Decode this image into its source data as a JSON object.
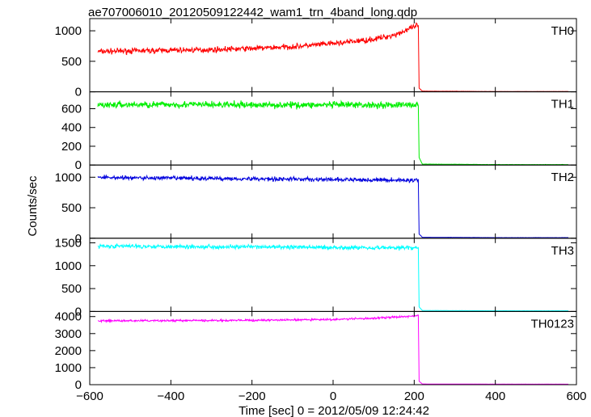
{
  "chart_data": {
    "type": "line",
    "title": "ae707006010_20120509122442_wam1_trn_4band_long.qdp",
    "xlabel": "Time [sec] 0 = 2012/05/09 12:24:42",
    "ylabel": "Counts/sec",
    "xlim": [
      -600,
      600
    ],
    "x_ticks": [
      -600,
      -400,
      -200,
      0,
      200,
      400,
      600
    ],
    "x_tick_labels": [
      "−600",
      "−400",
      "−200",
      "0",
      "200",
      "400",
      "600"
    ],
    "grid": false,
    "panels": [
      {
        "name": "TH0",
        "color": "#ff0000",
        "ylim": [
          0,
          1200
        ],
        "y_ticks": [
          0,
          500,
          1000
        ],
        "x": [
          -580,
          -500,
          -400,
          -300,
          -200,
          -100,
          0,
          100,
          150,
          200,
          210,
          212,
          220,
          300,
          400,
          500,
          580
        ],
        "y": [
          660,
          670,
          680,
          690,
          710,
          740,
          790,
          860,
          930,
          1060,
          1100,
          60,
          10,
          8,
          5,
          5,
          5
        ],
        "noise": 45
      },
      {
        "name": "TH1",
        "color": "#00ee00",
        "ylim": [
          0,
          780
        ],
        "y_ticks": [
          0,
          200,
          400,
          600
        ],
        "x": [
          -580,
          -400,
          -200,
          0,
          200,
          210,
          212,
          220,
          400,
          580
        ],
        "y": [
          640,
          645,
          640,
          640,
          640,
          640,
          80,
          10,
          5,
          5
        ],
        "noise": 35
      },
      {
        "name": "TH2",
        "color": "#0000dd",
        "ylim": [
          0,
          1200
        ],
        "y_ticks": [
          0,
          500,
          1000
        ],
        "x": [
          -580,
          -500,
          -400,
          -300,
          -200,
          -100,
          0,
          100,
          200,
          210,
          212,
          220,
          400,
          580
        ],
        "y": [
          1000,
          990,
          985,
          980,
          975,
          970,
          960,
          955,
          950,
          950,
          70,
          15,
          10,
          10
        ],
        "noise": 35
      },
      {
        "name": "TH3",
        "color": "#00ffff",
        "ylim": [
          0,
          1600
        ],
        "y_ticks": [
          0,
          500,
          1000,
          1500
        ],
        "x": [
          -580,
          -400,
          -200,
          0,
          200,
          210,
          212,
          220,
          400,
          580
        ],
        "y": [
          1430,
          1420,
          1410,
          1400,
          1390,
          1390,
          100,
          20,
          15,
          15
        ],
        "noise": 45
      },
      {
        "name": "TH0123",
        "color": "#ff00ff",
        "ylim": [
          0,
          4300
        ],
        "y_ticks": [
          0,
          1000,
          2000,
          3000,
          4000
        ],
        "x": [
          -580,
          -400,
          -200,
          0,
          100,
          200,
          210,
          212,
          220,
          400,
          580
        ],
        "y": [
          3750,
          3760,
          3780,
          3830,
          3900,
          4030,
          4080,
          200,
          40,
          30,
          30
        ],
        "noise": 55
      }
    ]
  }
}
